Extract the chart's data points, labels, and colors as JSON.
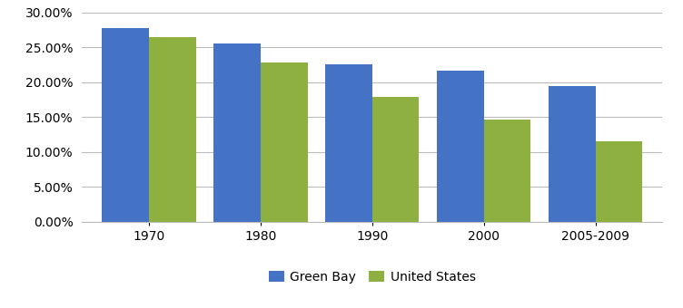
{
  "categories": [
    "1970",
    "1980",
    "1990",
    "2000",
    "2005-2009"
  ],
  "green_bay": [
    0.278,
    0.255,
    0.225,
    0.216,
    0.194
  ],
  "united_states": [
    0.264,
    0.228,
    0.179,
    0.146,
    0.115
  ],
  "green_bay_color": "#4472C4",
  "us_color": "#8DB040",
  "legend_labels": [
    "Green Bay",
    "United States"
  ],
  "ylim": [
    0,
    0.3
  ],
  "yticks": [
    0.0,
    0.05,
    0.1,
    0.15,
    0.2,
    0.25,
    0.3
  ],
  "bar_width": 0.42,
  "background_color": "#FFFFFF",
  "grid_color": "#BBBBBB",
  "tick_fontsize": 10,
  "legend_fontsize": 10
}
